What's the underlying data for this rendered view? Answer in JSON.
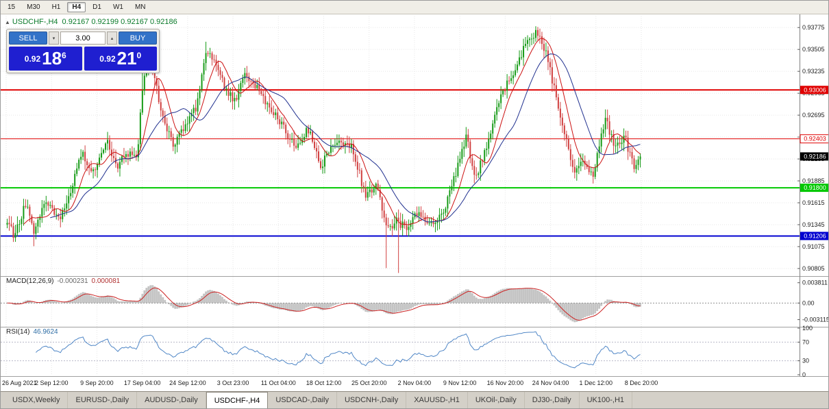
{
  "toolbar": {
    "timeframes": [
      "15",
      "M30",
      "H1",
      "H4",
      "D1",
      "W1",
      "MN"
    ],
    "active_timeframe": "H4"
  },
  "chart": {
    "collapse_icon": "▲",
    "symbol_title": "USDCHF-,H4",
    "ohlc_text": "0.92167 0.92199 0.92167 0.92186"
  },
  "trade_panel": {
    "sell_label": "SELL",
    "buy_label": "BUY",
    "volume": "3.00",
    "volume_down_icon": "▾",
    "volume_up_icon": "▴",
    "sell_price_small": "0.92",
    "sell_price_big": "18",
    "sell_price_sup": "6",
    "buy_price_small": "0.92",
    "buy_price_big": "21",
    "buy_price_sup": "0"
  },
  "chart_data": {
    "type": "candlestick",
    "symbol": "USDCHF-",
    "timeframe": "H4",
    "ohlc": {
      "open": 0.92167,
      "high": 0.92199,
      "low": 0.92167,
      "close": 0.92186
    },
    "current_price": 0.92186,
    "current_price_label": "0.92186",
    "price_axis_ticks": [
      "0.93775",
      "0.93505",
      "0.93235",
      "0.92965",
      "0.92695",
      "0.92425",
      "0.92155",
      "0.91885",
      "0.91615",
      "0.91345",
      "0.91075",
      "0.90805"
    ],
    "time_axis_labels": [
      "26 Aug 2021",
      "2 Sep 12:00",
      "9 Sep 20:00",
      "17 Sep 04:00",
      "24 Sep 12:00",
      "3 Oct 23:00",
      "11 Oct 04:00",
      "18 Oct 12:00",
      "25 Oct 20:00",
      "2 Nov 04:00",
      "9 Nov 12:00",
      "16 Nov 20:00",
      "24 Nov 04:00",
      "1 Dec 12:00",
      "8 Dec 20:00"
    ],
    "horizontal_lines": [
      {
        "price": 0.93006,
        "label": "0.93006",
        "color": "#e00000",
        "width": 2,
        "label_style": "solid"
      },
      {
        "price": 0.92403,
        "label": "0.92403",
        "color": "#e00000",
        "width": 1,
        "label_style": "outline"
      },
      {
        "price": 0.918,
        "label": "0.91800",
        "color": "#00c800",
        "width": 2,
        "label_style": "solid"
      },
      {
        "price": 0.91206,
        "label": "0.91206",
        "color": "#0000d0",
        "width": 2,
        "label_style": "solid"
      }
    ],
    "price_range": [
      0.9072,
      0.9392
    ],
    "num_candles": 310,
    "up_color": "#159a15",
    "down_color": "#d04040",
    "grid_color": "#e6e6e6",
    "price_path": [
      [
        0.0,
        0.9135
      ],
      [
        0.012,
        0.9121
      ],
      [
        0.03,
        0.9163
      ],
      [
        0.042,
        0.9128
      ],
      [
        0.06,
        0.9166
      ],
      [
        0.08,
        0.914
      ],
      [
        0.095,
        0.916
      ],
      [
        0.117,
        0.9224
      ],
      [
        0.135,
        0.9196
      ],
      [
        0.158,
        0.9235
      ],
      [
        0.175,
        0.9207
      ],
      [
        0.19,
        0.9224
      ],
      [
        0.205,
        0.9212
      ],
      [
        0.215,
        0.9318
      ],
      [
        0.228,
        0.9338
      ],
      [
        0.245,
        0.9265
      ],
      [
        0.262,
        0.9235
      ],
      [
        0.285,
        0.9258
      ],
      [
        0.3,
        0.9282
      ],
      [
        0.315,
        0.9352
      ],
      [
        0.33,
        0.933
      ],
      [
        0.345,
        0.93
      ],
      [
        0.36,
        0.9287
      ],
      [
        0.375,
        0.9318
      ],
      [
        0.39,
        0.9308
      ],
      [
        0.41,
        0.928
      ],
      [
        0.43,
        0.9262
      ],
      [
        0.455,
        0.923
      ],
      [
        0.475,
        0.9253
      ],
      [
        0.495,
        0.9207
      ],
      [
        0.52,
        0.924
      ],
      [
        0.545,
        0.9232
      ],
      [
        0.565,
        0.9172
      ],
      [
        0.585,
        0.9184
      ],
      [
        0.6,
        0.9127
      ],
      [
        0.615,
        0.9138
      ],
      [
        0.63,
        0.9131
      ],
      [
        0.65,
        0.915
      ],
      [
        0.67,
        0.9136
      ],
      [
        0.69,
        0.9152
      ],
      [
        0.71,
        0.92
      ],
      [
        0.725,
        0.9243
      ],
      [
        0.74,
        0.9192
      ],
      [
        0.76,
        0.924
      ],
      [
        0.78,
        0.9298
      ],
      [
        0.8,
        0.932
      ],
      [
        0.815,
        0.9352
      ],
      [
        0.835,
        0.9372
      ],
      [
        0.85,
        0.9348
      ],
      [
        0.865,
        0.93
      ],
      [
        0.88,
        0.925
      ],
      [
        0.895,
        0.9196
      ],
      [
        0.91,
        0.9216
      ],
      [
        0.925,
        0.9192
      ],
      [
        0.945,
        0.9266
      ],
      [
        0.96,
        0.923
      ],
      [
        0.975,
        0.9244
      ],
      [
        0.99,
        0.9206
      ],
      [
        1.0,
        0.92186
      ]
    ],
    "wick_events": [
      {
        "t": 0.042,
        "low": 0.9108
      },
      {
        "t": 0.215,
        "high": 0.9348
      },
      {
        "t": 0.315,
        "high": 0.936
      },
      {
        "t": 0.6,
        "low": 0.9081
      },
      {
        "t": 0.617,
        "low": 0.9075
      },
      {
        "t": 0.835,
        "high": 0.9377
      }
    ],
    "moving_averages": [
      {
        "period": 9,
        "color": "#cc1111"
      },
      {
        "period": 22,
        "color": "#20308f"
      }
    ],
    "macd": {
      "name": "MACD(12,26,9)",
      "value_main": "-0.000231",
      "value_signal": "0.000081",
      "axis_ticks": [
        "0.003811",
        "0.00",
        "-0.003115"
      ],
      "range": [
        -0.0042,
        0.0048
      ],
      "hist_color": "#c4c4c4",
      "signal_color": "#cc2222"
    },
    "rsi": {
      "name": "RSI(14)",
      "value": "46.9624",
      "axis_ticks": [
        "100",
        "70",
        "30",
        "0"
      ],
      "levels": [
        70,
        30
      ],
      "color": "#4f86c6"
    }
  },
  "tabs": {
    "items": [
      "USDX,Weekly",
      "EURUSD-,Daily",
      "AUDUSD-,Daily",
      "USDCHF-,H4",
      "USDCAD-,Daily",
      "USDCNH-,Daily",
      "XAUUSD-,H1",
      "UKOil-,Daily",
      "DJ30-,Daily",
      "UK100-,H1"
    ],
    "active": "USDCHF-,H4"
  }
}
